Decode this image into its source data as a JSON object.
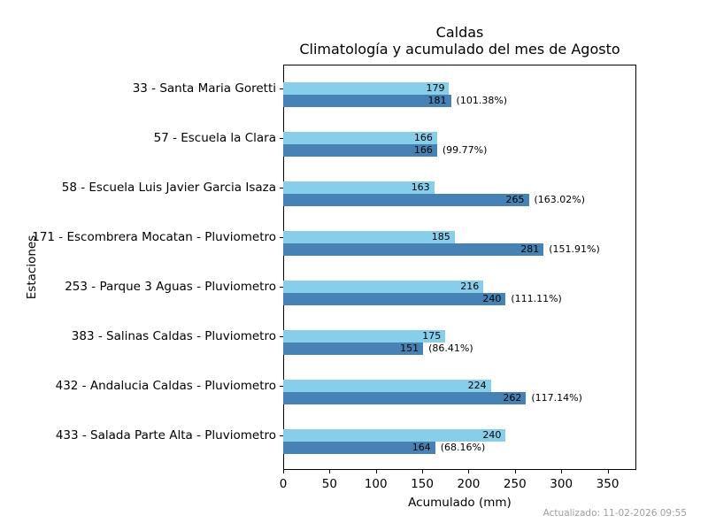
{
  "title": {
    "line1": "Caldas",
    "line2": "Climatología y acumulado del mes de Agosto"
  },
  "footer": {
    "updated": "Actualizado: 11-02-2026 09:55"
  },
  "colors": {
    "climatologia_bar": "#87CEEB",
    "acumulado_bar": "#4682B4",
    "axis": "#000000",
    "footer_text": "#9e9e9e",
    "background": "#ffffff"
  },
  "chart_data": {
    "type": "bar",
    "orientation": "horizontal",
    "title_lines": [
      "Caldas",
      "Climatología y acumulado del mes de Agosto"
    ],
    "xlabel": "Acumulado (mm)",
    "ylabel": "Estaciones",
    "xlim": [
      0,
      381
    ],
    "xticks": [
      0,
      50,
      100,
      150,
      200,
      250,
      300,
      350
    ],
    "grid": false,
    "legend": "none",
    "categories": [
      "33 - Santa Maria Goretti",
      "57 - Escuela la Clara",
      "58 - Escuela Luis Javier Garcia Isaza",
      "171 - Escombrera Mocatan - Pluviometro",
      "253 - Parque 3 Aguas - Pluviometro",
      "383 - Salinas Caldas - Pluviometro",
      "432 - Andalucia Caldas - Pluviometro",
      "433 - Salada Parte Alta - Pluviometro"
    ],
    "series": [
      {
        "name": "Climatología",
        "color": "#87CEEB",
        "values": [
          179,
          166,
          163,
          185,
          216,
          175,
          224,
          240
        ]
      },
      {
        "name": "Acumulado",
        "color": "#4682B4",
        "values": [
          181,
          166,
          265,
          281,
          240,
          151,
          262,
          164
        ],
        "pct_labels": [
          "(101.38%)",
          "(99.77%)",
          "(163.02%)",
          "(151.91%)",
          "(111.11%)",
          "(86.41%)",
          "(117.14%)",
          "(68.16%)"
        ]
      }
    ]
  }
}
